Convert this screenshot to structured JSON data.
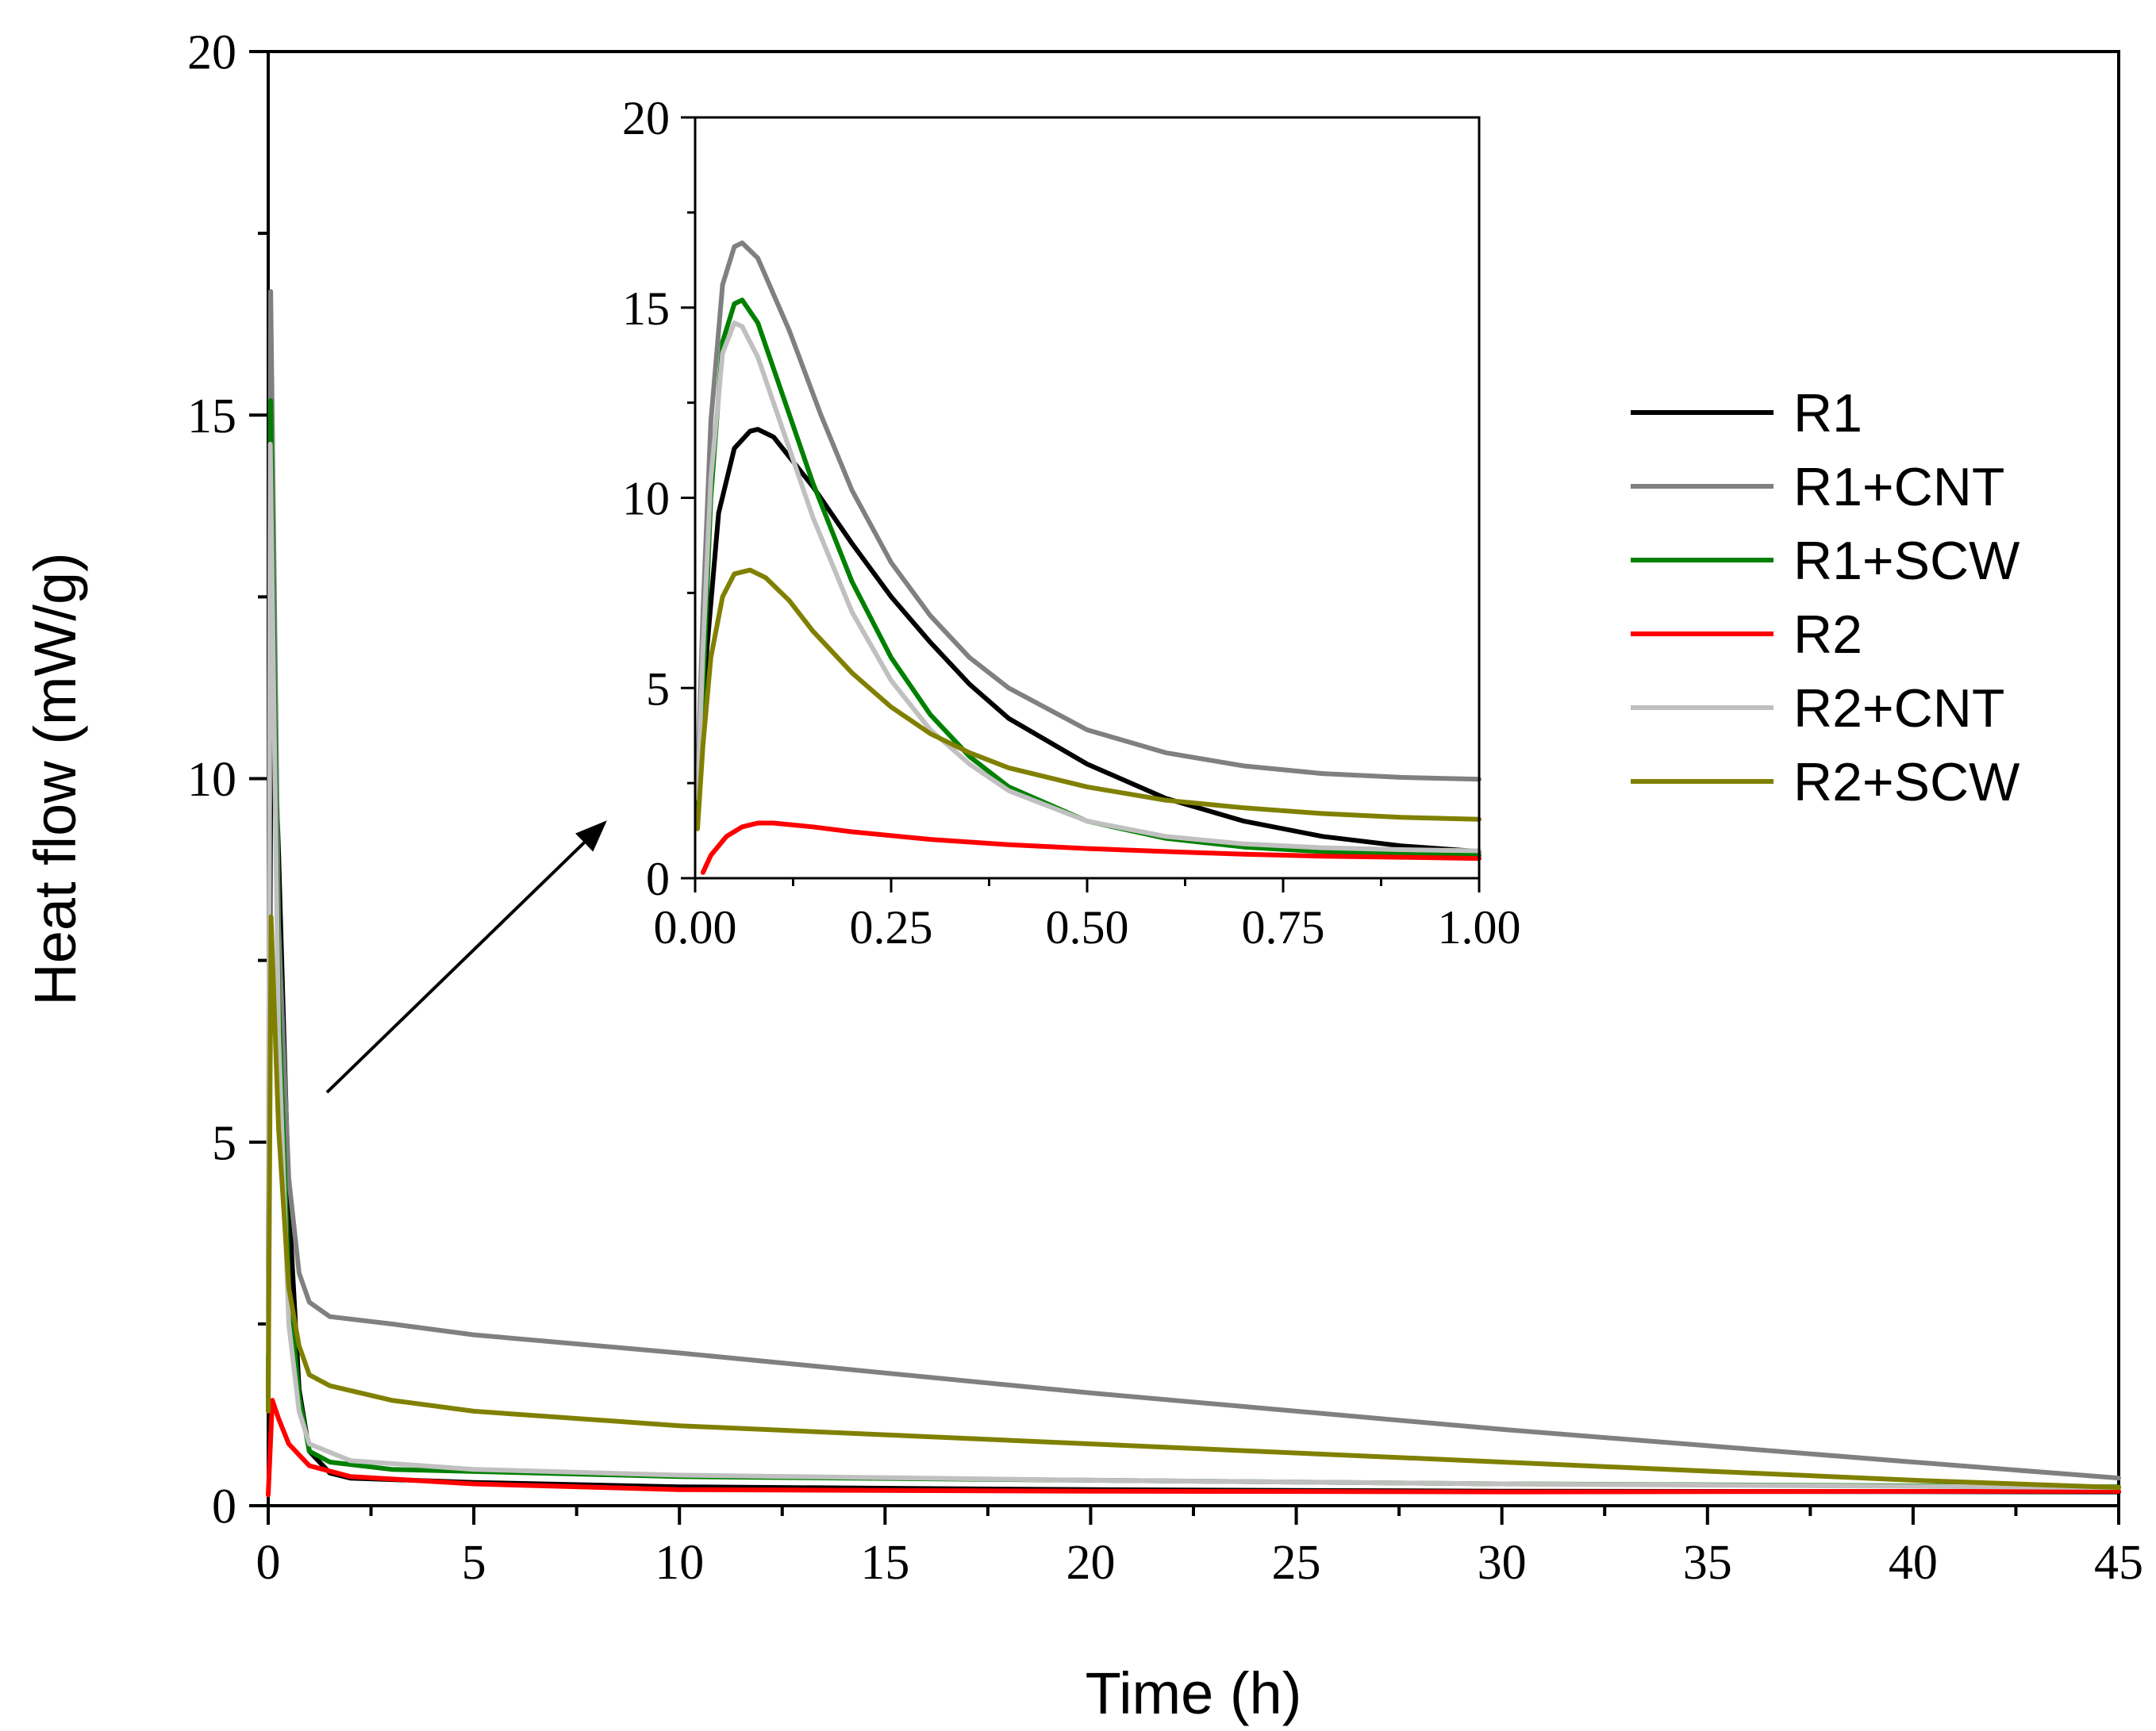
{
  "chart_data": [
    {
      "id": "main",
      "type": "line",
      "title": "",
      "xlabel": "Time (h)",
      "ylabel": "Heat flow (mW/g)",
      "xlim": [
        0,
        45
      ],
      "ylim": [
        0,
        20
      ],
      "xticks": [
        0,
        5,
        10,
        15,
        20,
        25,
        30,
        35,
        40,
        45
      ],
      "xtick_labels": [
        "0",
        "5",
        "10",
        "15",
        "20",
        "25",
        "30",
        "35",
        "40",
        "45"
      ],
      "yticks": [
        0,
        5,
        10,
        15,
        20
      ],
      "ytick_labels": [
        "0",
        "5",
        "10",
        "15",
        "20"
      ],
      "grid": false,
      "legend_position": "right",
      "series": [
        {
          "name": "R1",
          "color": "#000000",
          "points": [
            [
              0,
              3.2
            ],
            [
              0.08,
              11.8
            ],
            [
              0.25,
              9
            ],
            [
              0.5,
              4.2
            ],
            [
              0.75,
              1.6
            ],
            [
              1,
              0.75
            ],
            [
              1.5,
              0.45
            ],
            [
              2,
              0.38
            ],
            [
              5,
              0.32
            ],
            [
              10,
              0.26
            ],
            [
              20,
              0.22
            ],
            [
              30,
              0.2
            ],
            [
              45,
              0.19
            ]
          ]
        },
        {
          "name": "R1+CNT",
          "color": "#808080",
          "points": [
            [
              0,
              2.6
            ],
            [
              0.06,
              16.7
            ],
            [
              0.25,
              8
            ],
            [
              0.5,
              4.5
            ],
            [
              0.75,
              3.2
            ],
            [
              1,
              2.8
            ],
            [
              1.5,
              2.6
            ],
            [
              3,
              2.5
            ],
            [
              5,
              2.35
            ],
            [
              10,
              2.1
            ],
            [
              20,
              1.55
            ],
            [
              30,
              1.05
            ],
            [
              40,
              0.6
            ],
            [
              45,
              0.38
            ]
          ]
        },
        {
          "name": "R1+SCW",
          "color": "#008000",
          "points": [
            [
              0,
              1.4
            ],
            [
              0.06,
              15.2
            ],
            [
              0.25,
              7
            ],
            [
              0.5,
              3
            ],
            [
              0.75,
              1.5
            ],
            [
              1,
              0.75
            ],
            [
              1.5,
              0.6
            ],
            [
              3,
              0.5
            ],
            [
              10,
              0.4
            ],
            [
              20,
              0.35
            ],
            [
              30,
              0.3
            ],
            [
              45,
              0.26
            ]
          ]
        },
        {
          "name": "R2",
          "color": "#ff0000",
          "points": [
            [
              0,
              0.15
            ],
            [
              0.1,
              1.45
            ],
            [
              0.25,
              1.2
            ],
            [
              0.5,
              0.85
            ],
            [
              1,
              0.55
            ],
            [
              2,
              0.4
            ],
            [
              5,
              0.3
            ],
            [
              10,
              0.22
            ],
            [
              20,
              0.2
            ],
            [
              30,
              0.19
            ],
            [
              45,
              0.2
            ]
          ]
        },
        {
          "name": "R2+CNT",
          "color": "#c0c0c0",
          "points": [
            [
              0,
              2.1
            ],
            [
              0.05,
              14.6
            ],
            [
              0.25,
              6.5
            ],
            [
              0.5,
              2.5
            ],
            [
              0.75,
              1.3
            ],
            [
              1,
              0.85
            ],
            [
              2,
              0.62
            ],
            [
              5,
              0.5
            ],
            [
              10,
              0.42
            ],
            [
              20,
              0.35
            ],
            [
              30,
              0.3
            ],
            [
              45,
              0.25
            ]
          ]
        },
        {
          "name": "R2+SCW",
          "color": "#808000",
          "points": [
            [
              0,
              1.3
            ],
            [
              0.07,
              8.1
            ],
            [
              0.25,
              5.2
            ],
            [
              0.5,
              3
            ],
            [
              0.75,
              2.2
            ],
            [
              1,
              1.8
            ],
            [
              1.5,
              1.65
            ],
            [
              3,
              1.45
            ],
            [
              5,
              1.3
            ],
            [
              10,
              1.1
            ],
            [
              20,
              0.85
            ],
            [
              30,
              0.6
            ],
            [
              40,
              0.35
            ],
            [
              45,
              0.25
            ]
          ]
        }
      ]
    },
    {
      "id": "inset",
      "type": "line",
      "title": "",
      "xlabel": "",
      "ylabel": "",
      "xlim": [
        0,
        1
      ],
      "ylim": [
        0,
        20
      ],
      "xticks": [
        0,
        0.25,
        0.5,
        0.75,
        1
      ],
      "xtick_labels": [
        "0.00",
        "0.25",
        "0.50",
        "0.75",
        "1.00"
      ],
      "yticks": [
        0,
        5,
        10,
        15,
        20
      ],
      "ytick_labels": [
        "0",
        "5",
        "10",
        "15",
        "20"
      ],
      "grid": false,
      "series": [
        {
          "name": "R1",
          "color": "#000000",
          "points": [
            [
              0.005,
              3.1
            ],
            [
              0.015,
              6
            ],
            [
              0.03,
              9.6
            ],
            [
              0.05,
              11.3
            ],
            [
              0.07,
              11.75
            ],
            [
              0.08,
              11.8
            ],
            [
              0.1,
              11.6
            ],
            [
              0.15,
              10.3
            ],
            [
              0.2,
              8.8
            ],
            [
              0.25,
              7.4
            ],
            [
              0.3,
              6.2
            ],
            [
              0.35,
              5.1
            ],
            [
              0.4,
              4.2
            ],
            [
              0.5,
              3
            ],
            [
              0.6,
              2.1
            ],
            [
              0.7,
              1.5
            ],
            [
              0.8,
              1.1
            ],
            [
              0.9,
              0.85
            ],
            [
              1,
              0.7
            ]
          ]
        },
        {
          "name": "R1+CNT",
          "color": "#808080",
          "points": [
            [
              0.003,
              2.5
            ],
            [
              0.01,
              7
            ],
            [
              0.02,
              12
            ],
            [
              0.035,
              15.6
            ],
            [
              0.05,
              16.6
            ],
            [
              0.06,
              16.7
            ],
            [
              0.08,
              16.3
            ],
            [
              0.12,
              14.4
            ],
            [
              0.16,
              12.2
            ],
            [
              0.2,
              10.2
            ],
            [
              0.25,
              8.3
            ],
            [
              0.3,
              6.9
            ],
            [
              0.35,
              5.8
            ],
            [
              0.4,
              5
            ],
            [
              0.5,
              3.9
            ],
            [
              0.6,
              3.3
            ],
            [
              0.7,
              2.95
            ],
            [
              0.8,
              2.75
            ],
            [
              0.9,
              2.65
            ],
            [
              1,
              2.6
            ]
          ]
        },
        {
          "name": "R1+SCW",
          "color": "#008000",
          "points": [
            [
              0.003,
              1.4
            ],
            [
              0.01,
              5
            ],
            [
              0.02,
              10
            ],
            [
              0.035,
              14.1
            ],
            [
              0.05,
              15.1
            ],
            [
              0.06,
              15.2
            ],
            [
              0.08,
              14.6
            ],
            [
              0.1,
              13.4
            ],
            [
              0.15,
              10.4
            ],
            [
              0.2,
              7.8
            ],
            [
              0.25,
              5.8
            ],
            [
              0.3,
              4.3
            ],
            [
              0.35,
              3.2
            ],
            [
              0.4,
              2.4
            ],
            [
              0.5,
              1.5
            ],
            [
              0.6,
              1.05
            ],
            [
              0.7,
              0.82
            ],
            [
              0.8,
              0.7
            ],
            [
              0.9,
              0.63
            ],
            [
              1,
              0.6
            ]
          ]
        },
        {
          "name": "R2",
          "color": "#ff0000",
          "points": [
            [
              0.01,
              0.15
            ],
            [
              0.02,
              0.6
            ],
            [
              0.04,
              1.1
            ],
            [
              0.06,
              1.35
            ],
            [
              0.08,
              1.45
            ],
            [
              0.1,
              1.45
            ],
            [
              0.15,
              1.35
            ],
            [
              0.2,
              1.22
            ],
            [
              0.3,
              1.02
            ],
            [
              0.4,
              0.88
            ],
            [
              0.5,
              0.78
            ],
            [
              0.6,
              0.7
            ],
            [
              0.7,
              0.63
            ],
            [
              0.8,
              0.58
            ],
            [
              0.9,
              0.55
            ],
            [
              1,
              0.52
            ]
          ]
        },
        {
          "name": "R2+CNT",
          "color": "#c0c0c0",
          "points": [
            [
              0.003,
              2.1
            ],
            [
              0.01,
              6
            ],
            [
              0.02,
              10.5
            ],
            [
              0.035,
              13.8
            ],
            [
              0.05,
              14.6
            ],
            [
              0.06,
              14.5
            ],
            [
              0.08,
              13.7
            ],
            [
              0.1,
              12.5
            ],
            [
              0.15,
              9.5
            ],
            [
              0.2,
              7
            ],
            [
              0.25,
              5.2
            ],
            [
              0.3,
              3.9
            ],
            [
              0.35,
              3
            ],
            [
              0.4,
              2.3
            ],
            [
              0.5,
              1.5
            ],
            [
              0.6,
              1.1
            ],
            [
              0.7,
              0.9
            ],
            [
              0.8,
              0.8
            ],
            [
              0.9,
              0.75
            ],
            [
              1,
              0.72
            ]
          ]
        },
        {
          "name": "R2+SCW",
          "color": "#808000",
          "points": [
            [
              0.003,
              1.3
            ],
            [
              0.01,
              3.5
            ],
            [
              0.02,
              5.8
            ],
            [
              0.035,
              7.4
            ],
            [
              0.05,
              8
            ],
            [
              0.07,
              8.1
            ],
            [
              0.09,
              7.9
            ],
            [
              0.12,
              7.3
            ],
            [
              0.15,
              6.5
            ],
            [
              0.2,
              5.4
            ],
            [
              0.25,
              4.5
            ],
            [
              0.3,
              3.8
            ],
            [
              0.35,
              3.3
            ],
            [
              0.4,
              2.9
            ],
            [
              0.5,
              2.4
            ],
            [
              0.6,
              2.05
            ],
            [
              0.7,
              1.85
            ],
            [
              0.8,
              1.7
            ],
            [
              0.9,
              1.6
            ],
            [
              1,
              1.55
            ]
          ]
        }
      ]
    }
  ]
}
